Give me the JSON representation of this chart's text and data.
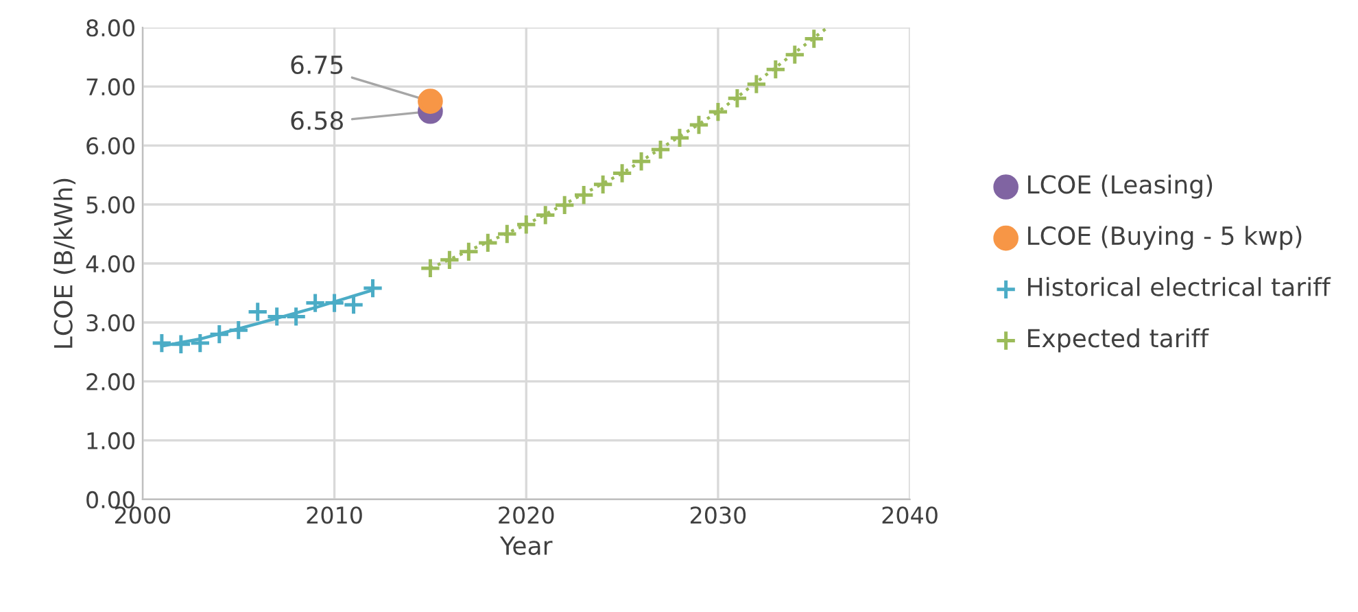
{
  "chart_data": {
    "type": "scatter",
    "xlabel": "Year",
    "ylabel": "LCOE (B/kWh)",
    "xlim": [
      2000,
      2040
    ],
    "xticks": [
      2000,
      2010,
      2020,
      2030,
      2040
    ],
    "ylim": [
      0,
      8
    ],
    "yticks": [
      {
        "value": 0,
        "label": "0.00"
      },
      {
        "value": 1,
        "label": "1.00"
      },
      {
        "value": 2,
        "label": "2.00"
      },
      {
        "value": 3,
        "label": "3.00"
      },
      {
        "value": 4,
        "label": "4.00"
      },
      {
        "value": 5,
        "label": "5.00"
      },
      {
        "value": 6,
        "label": "6.00"
      },
      {
        "value": 7,
        "label": "7.00"
      },
      {
        "value": 8,
        "label": "8.00"
      }
    ],
    "grid": true,
    "legend": "right",
    "series": [
      {
        "name": "LCOE (Leasing)",
        "color": "#8064a2",
        "marker": "circle",
        "x": [
          2015
        ],
        "values": [
          6.58
        ]
      },
      {
        "name": "LCOE (Buying - 5 kwp)",
        "color": "#f79646",
        "marker": "circle",
        "x": [
          2015
        ],
        "values": [
          6.75
        ]
      },
      {
        "name": "Historical electrical tariff",
        "color": "#4bacc6",
        "marker": "cross",
        "x": [
          2001,
          2002,
          2003,
          2004,
          2005,
          2006,
          2007,
          2008,
          2009,
          2010,
          2011,
          2012
        ],
        "values": [
          2.65,
          2.63,
          2.65,
          2.8,
          2.87,
          3.18,
          3.1,
          3.1,
          3.33,
          3.33,
          3.3,
          3.58
        ]
      },
      {
        "name": "Expected tariff",
        "color": "#9bbb59",
        "marker": "cross",
        "x": [
          2015,
          2016,
          2017,
          2018,
          2019,
          2020,
          2021,
          2022,
          2023,
          2024,
          2025,
          2026,
          2027,
          2028,
          2029,
          2030,
          2031,
          2032,
          2033,
          2034,
          2035
        ],
        "values": [
          3.92,
          4.06,
          4.2,
          4.35,
          4.5,
          4.66,
          4.82,
          4.99,
          5.16,
          5.34,
          5.53,
          5.73,
          5.93,
          6.13,
          6.35,
          6.57,
          6.8,
          7.04,
          7.29,
          7.54,
          7.81
        ]
      },
      {
        "type": "line",
        "color": "#4bacc6",
        "line_style": "solid",
        "x": [
          2001,
          2003,
          2006,
          2009,
          2012
        ],
        "values": [
          2.6,
          2.72,
          2.98,
          3.25,
          3.55
        ]
      },
      {
        "type": "line",
        "color": "#9bbb59",
        "line_style": "dotted",
        "x": [
          2015,
          2020,
          2025,
          2030,
          2035.7
        ],
        "values": [
          3.92,
          4.66,
          5.53,
          6.57,
          8.0
        ]
      }
    ],
    "annotations": [
      {
        "text": "6.75",
        "x": 2015,
        "y": 6.75
      },
      {
        "text": "6.58",
        "x": 2015,
        "y": 6.58
      }
    ]
  }
}
